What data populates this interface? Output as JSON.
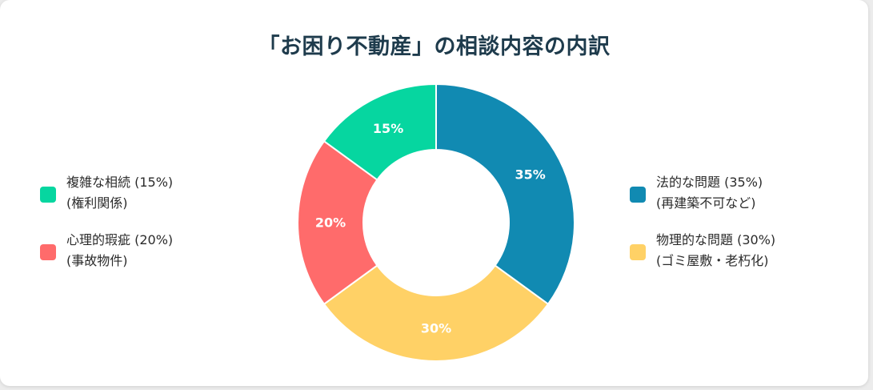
{
  "chart_data": {
    "type": "pie",
    "title": "「お困り不動産」の相談内容の内訳",
    "categories": [
      "法的な問題",
      "物理的な問題",
      "心理的瑕疵",
      "複雑な相続"
    ],
    "values": [
      35,
      30,
      20,
      15
    ],
    "data_labels": [
      "35%",
      "30%",
      "20%",
      "15%"
    ],
    "colors": [
      "#118ab2",
      "#ffd166",
      "#ff6b6b",
      "#06d6a0"
    ],
    "legend_placement": "left-and-right",
    "donut": true
  },
  "legend": {
    "left": [
      {
        "line1": "複雑な相続 (15%)",
        "line2": "(権利関係)",
        "color": "#06d6a0"
      },
      {
        "line1": "心理的瑕疵 (20%)",
        "line2": "(事故物件)",
        "color": "#ff6b6b"
      }
    ],
    "right": [
      {
        "line1": "法的な問題 (35%)",
        "line2": "(再建築不可など)",
        "color": "#118ab2"
      },
      {
        "line1": "物理的な問題 (30%)",
        "line2": "(ゴミ屋敷・老朽化)",
        "color": "#ffd166"
      }
    ]
  }
}
